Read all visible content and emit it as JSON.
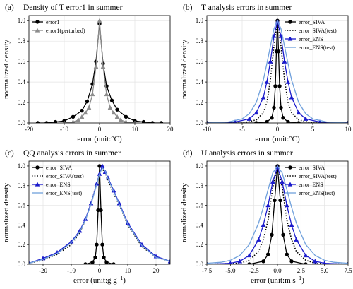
{
  "chart_data": [
    {
      "type": "line",
      "panel": "(a)",
      "title": "Density of T error1 in summer",
      "xlabel": "error (unit:°C)",
      "ylabel": "normalized density",
      "xlim": [
        -20,
        20
      ],
      "ylim": [
        0,
        1.05
      ],
      "xticks": [
        -20,
        -10,
        0,
        10,
        20
      ],
      "yticks": [
        0.0,
        0.2,
        0.4,
        0.6,
        0.8,
        1.0
      ],
      "grid": true,
      "legend": "top-left",
      "series": [
        {
          "name": "error1",
          "color": "#000000",
          "marker": "circle",
          "dash": "solid",
          "x": [
            -17.5,
            -15,
            -12.5,
            -10,
            -7.5,
            -5,
            -3.5,
            -2,
            -1,
            0,
            1,
            2,
            3.5,
            5,
            7.5,
            10,
            12.5,
            15,
            17.5
          ],
          "y": [
            0.0,
            0.0,
            0.01,
            0.02,
            0.06,
            0.12,
            0.21,
            0.38,
            0.6,
            0.97,
            0.58,
            0.36,
            0.22,
            0.13,
            0.06,
            0.02,
            0.01,
            0.0,
            0.0
          ]
        },
        {
          "name": "error1(perturbed)",
          "color": "#8c8c8c",
          "marker": "triangle",
          "dash": "solid",
          "x": [
            -10,
            -7.5,
            -6,
            -5,
            -4,
            -3,
            -2,
            -1,
            0,
            1,
            2,
            3,
            4,
            5,
            6,
            7.5,
            10
          ],
          "y": [
            0.0,
            0.01,
            0.03,
            0.06,
            0.1,
            0.15,
            0.28,
            0.55,
            1.0,
            0.55,
            0.28,
            0.15,
            0.1,
            0.06,
            0.03,
            0.01,
            0.0
          ]
        }
      ]
    },
    {
      "type": "line",
      "panel": "(b)",
      "title": "T analysis errors in summer",
      "xlabel": "error (unit:°C)",
      "ylabel": "normalized density",
      "xlim": [
        -10,
        10
      ],
      "ylim": [
        0,
        1.05
      ],
      "xticks": [
        -10,
        -5,
        0,
        5,
        10
      ],
      "yticks": [
        0.0,
        0.2,
        0.4,
        0.6,
        0.8,
        1.0
      ],
      "grid": true,
      "legend": "top-right",
      "series": [
        {
          "name": "error_SIVA",
          "color": "#000000",
          "marker": "circle",
          "dash": "solid",
          "x": [
            -10,
            -3,
            -1.5,
            -0.8,
            -0.5,
            -0.3,
            -0.15,
            0,
            0.15,
            0.3,
            0.5,
            0.8,
            1.5,
            3,
            10
          ],
          "y": [
            0,
            0,
            0.01,
            0.05,
            0.15,
            0.36,
            0.7,
            1.0,
            0.7,
            0.36,
            0.15,
            0.05,
            0.01,
            0,
            0
          ]
        },
        {
          "name": "error_SIVA(test)",
          "color": "#000000",
          "marker": "none",
          "dash": "dotted",
          "x": [
            -10,
            -5,
            -3,
            -2,
            -1.5,
            -1,
            -0.5,
            0,
            0.5,
            1,
            1.5,
            2,
            3,
            5,
            10
          ],
          "y": [
            0,
            0,
            0.03,
            0.1,
            0.2,
            0.42,
            0.75,
            1.0,
            0.75,
            0.42,
            0.2,
            0.1,
            0.03,
            0,
            0
          ]
        },
        {
          "name": "error_ENS",
          "color": "#1a1acc",
          "marker": "triangle",
          "dash": "solid",
          "x": [
            -10,
            -6,
            -4,
            -3,
            -2,
            -1.5,
            -1,
            -0.5,
            0,
            0.5,
            1,
            1.5,
            2,
            3,
            4,
            6,
            10
          ],
          "y": [
            0,
            0.01,
            0.04,
            0.1,
            0.25,
            0.4,
            0.6,
            0.85,
            0.99,
            0.85,
            0.6,
            0.4,
            0.25,
            0.1,
            0.04,
            0.01,
            0
          ]
        },
        {
          "name": "error_ENS(test)",
          "color": "#6fa0dc",
          "marker": "none",
          "dash": "solid",
          "x": [
            -10,
            -7,
            -5,
            -4,
            -3,
            -2,
            -1.5,
            -1,
            -0.5,
            0,
            0.5,
            1,
            1.5,
            2,
            3,
            4,
            5,
            7,
            10
          ],
          "y": [
            0,
            0.01,
            0.04,
            0.09,
            0.2,
            0.42,
            0.58,
            0.75,
            0.92,
            1.0,
            0.92,
            0.75,
            0.58,
            0.42,
            0.2,
            0.09,
            0.04,
            0.01,
            0
          ]
        }
      ]
    },
    {
      "type": "line",
      "panel": "(c)",
      "title": "QQ analysis errors in summer",
      "xlabel": "error (unit:g g",
      "xlabel_sup": "−1",
      "xlabel_end": ")",
      "ylabel": "normalized density",
      "xlim": [
        -25,
        25
      ],
      "ylim": [
        0,
        1.05
      ],
      "xticks": [
        -20,
        -10,
        0,
        10,
        20
      ],
      "yticks": [
        0.0,
        0.2,
        0.4,
        0.6,
        0.8,
        1.0
      ],
      "grid": true,
      "legend": "top-left",
      "series": [
        {
          "name": "error_SIVA",
          "color": "#000000",
          "marker": "circle",
          "dash": "solid",
          "x": [
            -25,
            -5,
            -2.5,
            -1.5,
            -1,
            -0.5,
            0,
            0.5,
            1,
            1.5,
            2.5,
            5,
            25
          ],
          "y": [
            0,
            0,
            0.02,
            0.07,
            0.2,
            0.55,
            1.0,
            0.55,
            0.2,
            0.07,
            0.02,
            0,
            0
          ]
        },
        {
          "name": "error_SIVA(test)",
          "color": "#000000",
          "marker": "none",
          "dash": "dotted",
          "x": [
            -25,
            -20,
            -15,
            -10,
            -7,
            -5,
            -3,
            -1,
            0,
            1,
            2,
            3,
            5,
            7,
            10,
            15,
            20,
            25
          ],
          "y": [
            0.01,
            0.04,
            0.1,
            0.2,
            0.32,
            0.45,
            0.62,
            0.82,
            0.93,
            0.97,
            0.93,
            0.85,
            0.72,
            0.6,
            0.4,
            0.18,
            0.07,
            0.03
          ]
        },
        {
          "name": "error_ENS",
          "color": "#1a1acc",
          "marker": "triangle",
          "dash": "solid",
          "x": [
            -25,
            -20,
            -15,
            -10,
            -7,
            -5,
            -3,
            -1,
            0,
            1,
            2,
            3,
            5,
            7,
            10,
            15,
            20,
            25
          ],
          "y": [
            0.01,
            0.06,
            0.12,
            0.23,
            0.34,
            0.46,
            0.62,
            0.82,
            0.92,
            1.0,
            0.94,
            0.88,
            0.75,
            0.62,
            0.42,
            0.2,
            0.08,
            0.03
          ]
        },
        {
          "name": "error_ENS(test)",
          "color": "#6fa0dc",
          "marker": "none",
          "dash": "solid",
          "x": [
            -25,
            -20,
            -15,
            -10,
            -7,
            -5,
            -3,
            -1,
            0,
            1,
            2,
            3,
            5,
            7,
            10,
            15,
            20,
            25
          ],
          "y": [
            0.01,
            0.05,
            0.11,
            0.22,
            0.33,
            0.45,
            0.61,
            0.81,
            0.92,
            0.98,
            0.95,
            0.87,
            0.74,
            0.61,
            0.41,
            0.19,
            0.07,
            0.03
          ]
        }
      ]
    },
    {
      "type": "line",
      "panel": "(d)",
      "title": "U analysis errors in summer",
      "xlabel": "error (unit:m s",
      "xlabel_sup": "−1",
      "xlabel_end": ")",
      "ylabel": "normalized density",
      "xlim": [
        -7.5,
        7.5
      ],
      "ylim": [
        0,
        1.05
      ],
      "xticks": [
        -7.5,
        -5.0,
        -2.5,
        0.0,
        2.5,
        5.0,
        7.5
      ],
      "yticks": [
        0.0,
        0.2,
        0.4,
        0.6,
        0.8,
        1.0
      ],
      "grid": true,
      "legend": "top-right",
      "series": [
        {
          "name": "error_SIVA",
          "color": "#000000",
          "marker": "circle",
          "dash": "solid",
          "x": [
            -7.5,
            -3,
            -1.5,
            -1,
            -0.6,
            -0.3,
            0,
            0.3,
            0.6,
            1,
            1.5,
            3,
            7.5
          ],
          "y": [
            0,
            0,
            0.03,
            0.1,
            0.3,
            0.65,
            1.0,
            0.65,
            0.3,
            0.1,
            0.03,
            0,
            0
          ]
        },
        {
          "name": "error_SIVA(test)",
          "color": "#000000",
          "marker": "none",
          "dash": "dotted",
          "x": [
            -7.5,
            -4,
            -3,
            -2,
            -1.5,
            -1,
            -0.5,
            0,
            0.5,
            1,
            1.5,
            2,
            3,
            4,
            7.5
          ],
          "y": [
            0,
            0.01,
            0.04,
            0.13,
            0.25,
            0.45,
            0.78,
            1.0,
            0.78,
            0.45,
            0.25,
            0.13,
            0.04,
            0.01,
            0
          ]
        },
        {
          "name": "error_ENS",
          "color": "#1a1acc",
          "marker": "triangle",
          "dash": "solid",
          "x": [
            -7.5,
            -5,
            -4,
            -3,
            -2,
            -1.5,
            -1,
            -0.5,
            0,
            0.5,
            1,
            1.5,
            2,
            3,
            4,
            5,
            7.5
          ],
          "y": [
            0,
            0.01,
            0.03,
            0.09,
            0.25,
            0.4,
            0.6,
            0.84,
            0.99,
            0.84,
            0.6,
            0.4,
            0.25,
            0.09,
            0.03,
            0.01,
            0
          ]
        },
        {
          "name": "error_ENS(test)",
          "color": "#6fa0dc",
          "marker": "none",
          "dash": "solid",
          "x": [
            -7.5,
            -6,
            -5,
            -4,
            -3,
            -2,
            -1.5,
            -1,
            -0.5,
            0,
            0.5,
            1,
            1.5,
            2,
            3,
            4,
            5,
            6,
            7.5
          ],
          "y": [
            0.01,
            0.02,
            0.04,
            0.09,
            0.2,
            0.42,
            0.58,
            0.76,
            0.93,
            1.0,
            0.93,
            0.76,
            0.58,
            0.42,
            0.2,
            0.09,
            0.04,
            0.02,
            0.01
          ]
        }
      ]
    }
  ]
}
